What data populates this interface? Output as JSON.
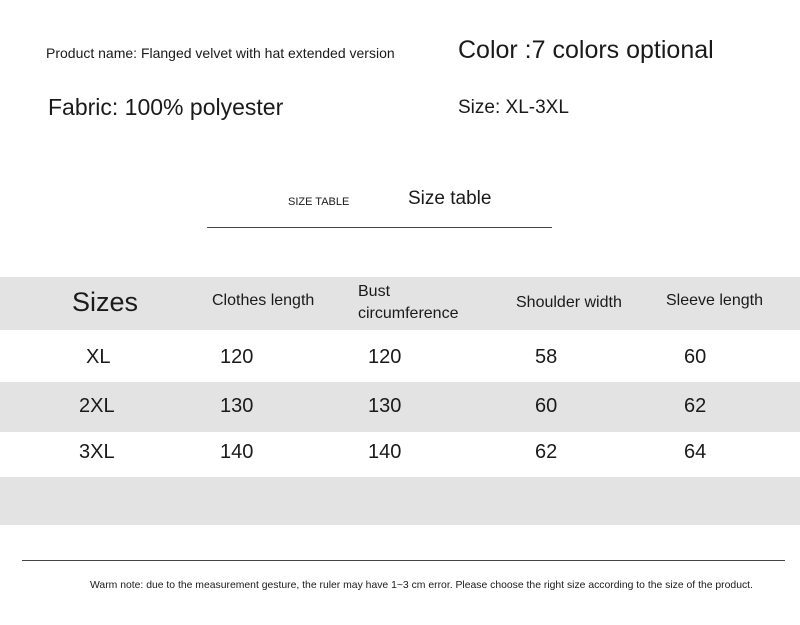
{
  "info": {
    "product_name": "Product name: Flanged velvet with hat extended version",
    "color": "Color :7 colors optional",
    "fabric": "Fabric: 100% polyester",
    "size": "Size: XL-3XL"
  },
  "section": {
    "label_small": "SIZE TABLE",
    "label_large": "Size table"
  },
  "table": {
    "headers": [
      "Sizes",
      "Clothes length",
      "Bust circumference",
      "Shoulder width",
      "Sleeve length"
    ],
    "header_bust_lines": [
      "Bust",
      "circumference"
    ],
    "rows": [
      [
        "XL",
        "120",
        "120",
        "58",
        "60"
      ],
      [
        "2XL",
        "130",
        "130",
        "60",
        "62"
      ],
      [
        "3XL",
        "140",
        "140",
        "62",
        "64"
      ]
    ]
  },
  "note": "Warm note: due to the measurement gesture, the ruler may have 1~3 cm error. Please choose the right size according to the size of the product.",
  "colors": {
    "band": "#e3e3e3",
    "text": "#1a1a1a"
  }
}
